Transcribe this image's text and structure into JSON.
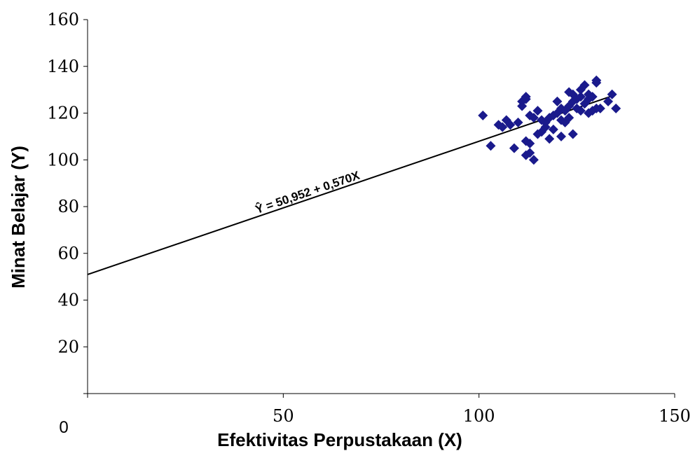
{
  "chart_data": {
    "type": "scatter",
    "title": "",
    "xlabel": "Efektivitas Perpustakaan (X)",
    "ylabel": "Minat Belajar (Y)",
    "origin_label": "0",
    "xlim": [
      0,
      150
    ],
    "ylim": [
      0,
      160
    ],
    "x_ticks": [
      0,
      50,
      100,
      150
    ],
    "x_tick_labels": [
      "",
      "50",
      "100",
      "150"
    ],
    "y_ticks": [
      0,
      20,
      40,
      60,
      80,
      100,
      120,
      140,
      160
    ],
    "y_tick_labels": [
      "",
      "20",
      "40",
      "60",
      "80",
      "100",
      "120",
      "140",
      "160"
    ],
    "grid": false,
    "legend": "none",
    "marker_color": "#1a1a8c",
    "marker": "diamond",
    "line_color": "#000000",
    "regression": {
      "intercept": 50.952,
      "slope": 0.57,
      "x_range": [
        0,
        134
      ],
      "equation_text": "Ŷ = 50,952 + 0,570X"
    },
    "points": [
      {
        "x": 101,
        "y": 119
      },
      {
        "x": 103,
        "y": 106
      },
      {
        "x": 105,
        "y": 115
      },
      {
        "x": 106,
        "y": 114
      },
      {
        "x": 107,
        "y": 117
      },
      {
        "x": 108,
        "y": 115
      },
      {
        "x": 109,
        "y": 105
      },
      {
        "x": 110,
        "y": 116
      },
      {
        "x": 111,
        "y": 123
      },
      {
        "x": 111,
        "y": 125
      },
      {
        "x": 112,
        "y": 127
      },
      {
        "x": 112,
        "y": 126
      },
      {
        "x": 112,
        "y": 108
      },
      {
        "x": 112,
        "y": 102
      },
      {
        "x": 113,
        "y": 103
      },
      {
        "x": 113,
        "y": 107
      },
      {
        "x": 113,
        "y": 119
      },
      {
        "x": 114,
        "y": 100
      },
      {
        "x": 114,
        "y": 118
      },
      {
        "x": 115,
        "y": 111
      },
      {
        "x": 115,
        "y": 121
      },
      {
        "x": 116,
        "y": 112
      },
      {
        "x": 116,
        "y": 117
      },
      {
        "x": 117,
        "y": 114
      },
      {
        "x": 117,
        "y": 116
      },
      {
        "x": 118,
        "y": 109
      },
      {
        "x": 118,
        "y": 118
      },
      {
        "x": 119,
        "y": 113
      },
      {
        "x": 119,
        "y": 119
      },
      {
        "x": 120,
        "y": 120
      },
      {
        "x": 120,
        "y": 125
      },
      {
        "x": 121,
        "y": 110
      },
      {
        "x": 121,
        "y": 117
      },
      {
        "x": 121,
        "y": 122
      },
      {
        "x": 122,
        "y": 116
      },
      {
        "x": 122,
        "y": 121
      },
      {
        "x": 123,
        "y": 118
      },
      {
        "x": 123,
        "y": 123
      },
      {
        "x": 123,
        "y": 129
      },
      {
        "x": 124,
        "y": 111
      },
      {
        "x": 124,
        "y": 125
      },
      {
        "x": 124,
        "y": 128
      },
      {
        "x": 125,
        "y": 122
      },
      {
        "x": 125,
        "y": 126
      },
      {
        "x": 126,
        "y": 121
      },
      {
        "x": 126,
        "y": 127
      },
      {
        "x": 126,
        "y": 130
      },
      {
        "x": 127,
        "y": 124
      },
      {
        "x": 127,
        "y": 132
      },
      {
        "x": 128,
        "y": 120
      },
      {
        "x": 128,
        "y": 126
      },
      {
        "x": 128,
        "y": 128
      },
      {
        "x": 129,
        "y": 121
      },
      {
        "x": 129,
        "y": 127
      },
      {
        "x": 130,
        "y": 122
      },
      {
        "x": 130,
        "y": 133
      },
      {
        "x": 130,
        "y": 134
      },
      {
        "x": 131,
        "y": 122
      },
      {
        "x": 133,
        "y": 125
      },
      {
        "x": 134,
        "y": 128
      },
      {
        "x": 135,
        "y": 122
      }
    ]
  }
}
